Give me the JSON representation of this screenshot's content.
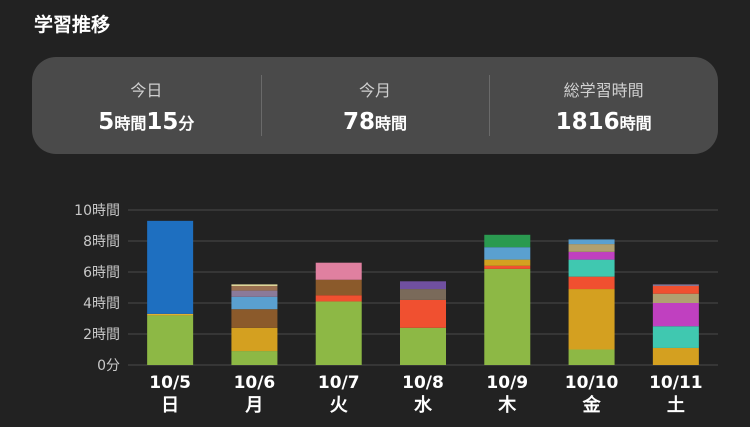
{
  "section_title": "学習推移",
  "summary": {
    "today": {
      "label": "今日",
      "hours": "5",
      "hours_unit": "時間",
      "minutes": "15",
      "minutes_unit": "分"
    },
    "month": {
      "label": "今月",
      "value": "78",
      "unit": "時間"
    },
    "total": {
      "label": "総学習時間",
      "value": "1816",
      "unit": "時間"
    }
  },
  "chart_data": {
    "type": "bar",
    "stacked": true,
    "categories": [
      "10/5",
      "10/6",
      "10/7",
      "10/8",
      "10/9",
      "10/10",
      "10/11"
    ],
    "weekdays": [
      "日",
      "月",
      "火",
      "水",
      "木",
      "金",
      "土"
    ],
    "ytick_labels": [
      "0分",
      "2時間",
      "4時間",
      "6時間",
      "8時間",
      "10時間"
    ],
    "ylim": [
      0,
      10
    ],
    "grid": true,
    "bars": [
      [
        {
          "value": 3.2,
          "color": "#8db845"
        },
        {
          "value": 0.1,
          "color": "#e0b030"
        },
        {
          "value": 6.0,
          "color": "#1e6fc0"
        }
      ],
      [
        {
          "value": 0.9,
          "color": "#8db845"
        },
        {
          "value": 1.5,
          "color": "#d4a020"
        },
        {
          "value": 1.2,
          "color": "#8b5a2b"
        },
        {
          "value": 0.8,
          "color": "#5aa0d0"
        },
        {
          "value": 0.4,
          "color": "#8a7a9a"
        },
        {
          "value": 0.3,
          "color": "#9a7050"
        },
        {
          "value": 0.1,
          "color": "#e8e0a0"
        }
      ],
      [
        {
          "value": 4.1,
          "color": "#8db845"
        },
        {
          "value": 0.4,
          "color": "#f05030"
        },
        {
          "value": 1.0,
          "color": "#8b5a2b"
        },
        {
          "value": 1.1,
          "color": "#e080a0"
        }
      ],
      [
        {
          "value": 2.4,
          "color": "#8db845"
        },
        {
          "value": 1.8,
          "color": "#f05030"
        },
        {
          "value": 0.7,
          "color": "#7a6a5a"
        },
        {
          "value": 0.5,
          "color": "#7050a0"
        }
      ],
      [
        {
          "value": 6.2,
          "color": "#8db845"
        },
        {
          "value": 0.2,
          "color": "#f05030"
        },
        {
          "value": 0.4,
          "color": "#d4a020"
        },
        {
          "value": 0.8,
          "color": "#5aa0d0"
        },
        {
          "value": 0.8,
          "color": "#2a9a50"
        }
      ],
      [
        {
          "value": 1.0,
          "color": "#8db845"
        },
        {
          "value": 3.9,
          "color": "#d4a020"
        },
        {
          "value": 0.8,
          "color": "#f05030"
        },
        {
          "value": 1.1,
          "color": "#40c8b0"
        },
        {
          "value": 0.5,
          "color": "#c040c0"
        },
        {
          "value": 0.5,
          "color": "#b0a070"
        },
        {
          "value": 0.3,
          "color": "#5aa0d0"
        }
      ],
      [
        {
          "value": 1.1,
          "color": "#d4a020"
        },
        {
          "value": 1.4,
          "color": "#40c8b0"
        },
        {
          "value": 1.5,
          "color": "#c040c0"
        },
        {
          "value": 0.6,
          "color": "#b0a070"
        },
        {
          "value": 0.5,
          "color": "#f05030"
        },
        {
          "value": 0.1,
          "color": "#8a7a9a"
        }
      ]
    ]
  },
  "colors": {
    "background": "#222222",
    "card": "#4a4a4a",
    "grid": "#4a4a4a",
    "axis_text": "#c8c8c8"
  }
}
